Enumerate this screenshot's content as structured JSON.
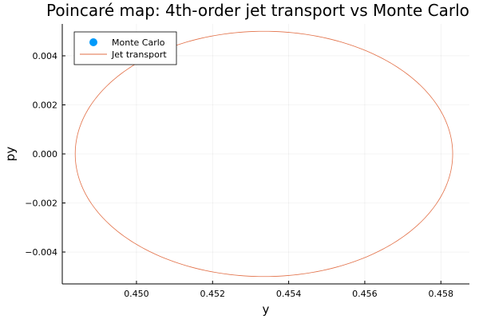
{
  "chart_data": {
    "type": "line",
    "title": "Poincaré map: 4th-order jet transport vs Monte Carlo",
    "xlabel": "y",
    "ylabel": "py",
    "xlim": [
      0.44805,
      0.45875
    ],
    "ylim": [
      -0.0053,
      0.0053
    ],
    "xticks": [
      0.45,
      0.452,
      0.454,
      0.456,
      0.458
    ],
    "xtick_labels": [
      "0.450",
      "0.452",
      "0.454",
      "0.456",
      "0.458"
    ],
    "yticks": [
      -0.004,
      -0.002,
      0.0,
      0.002,
      0.004
    ],
    "ytick_labels": [
      "−0.004",
      "−0.002",
      "0.000",
      "0.002",
      "0.004"
    ],
    "grid": true,
    "legend_position": "top-left",
    "series": [
      {
        "name": "Monte Carlo",
        "kind": "scatter",
        "color": "#009AFA",
        "points": []
      },
      {
        "name": "Jet transport",
        "kind": "line",
        "color": "#E26F46",
        "shape": "closed-curve",
        "center": [
          0.45335,
          0.0
        ],
        "semi_axes": [
          0.00496,
          0.005
        ]
      }
    ]
  }
}
